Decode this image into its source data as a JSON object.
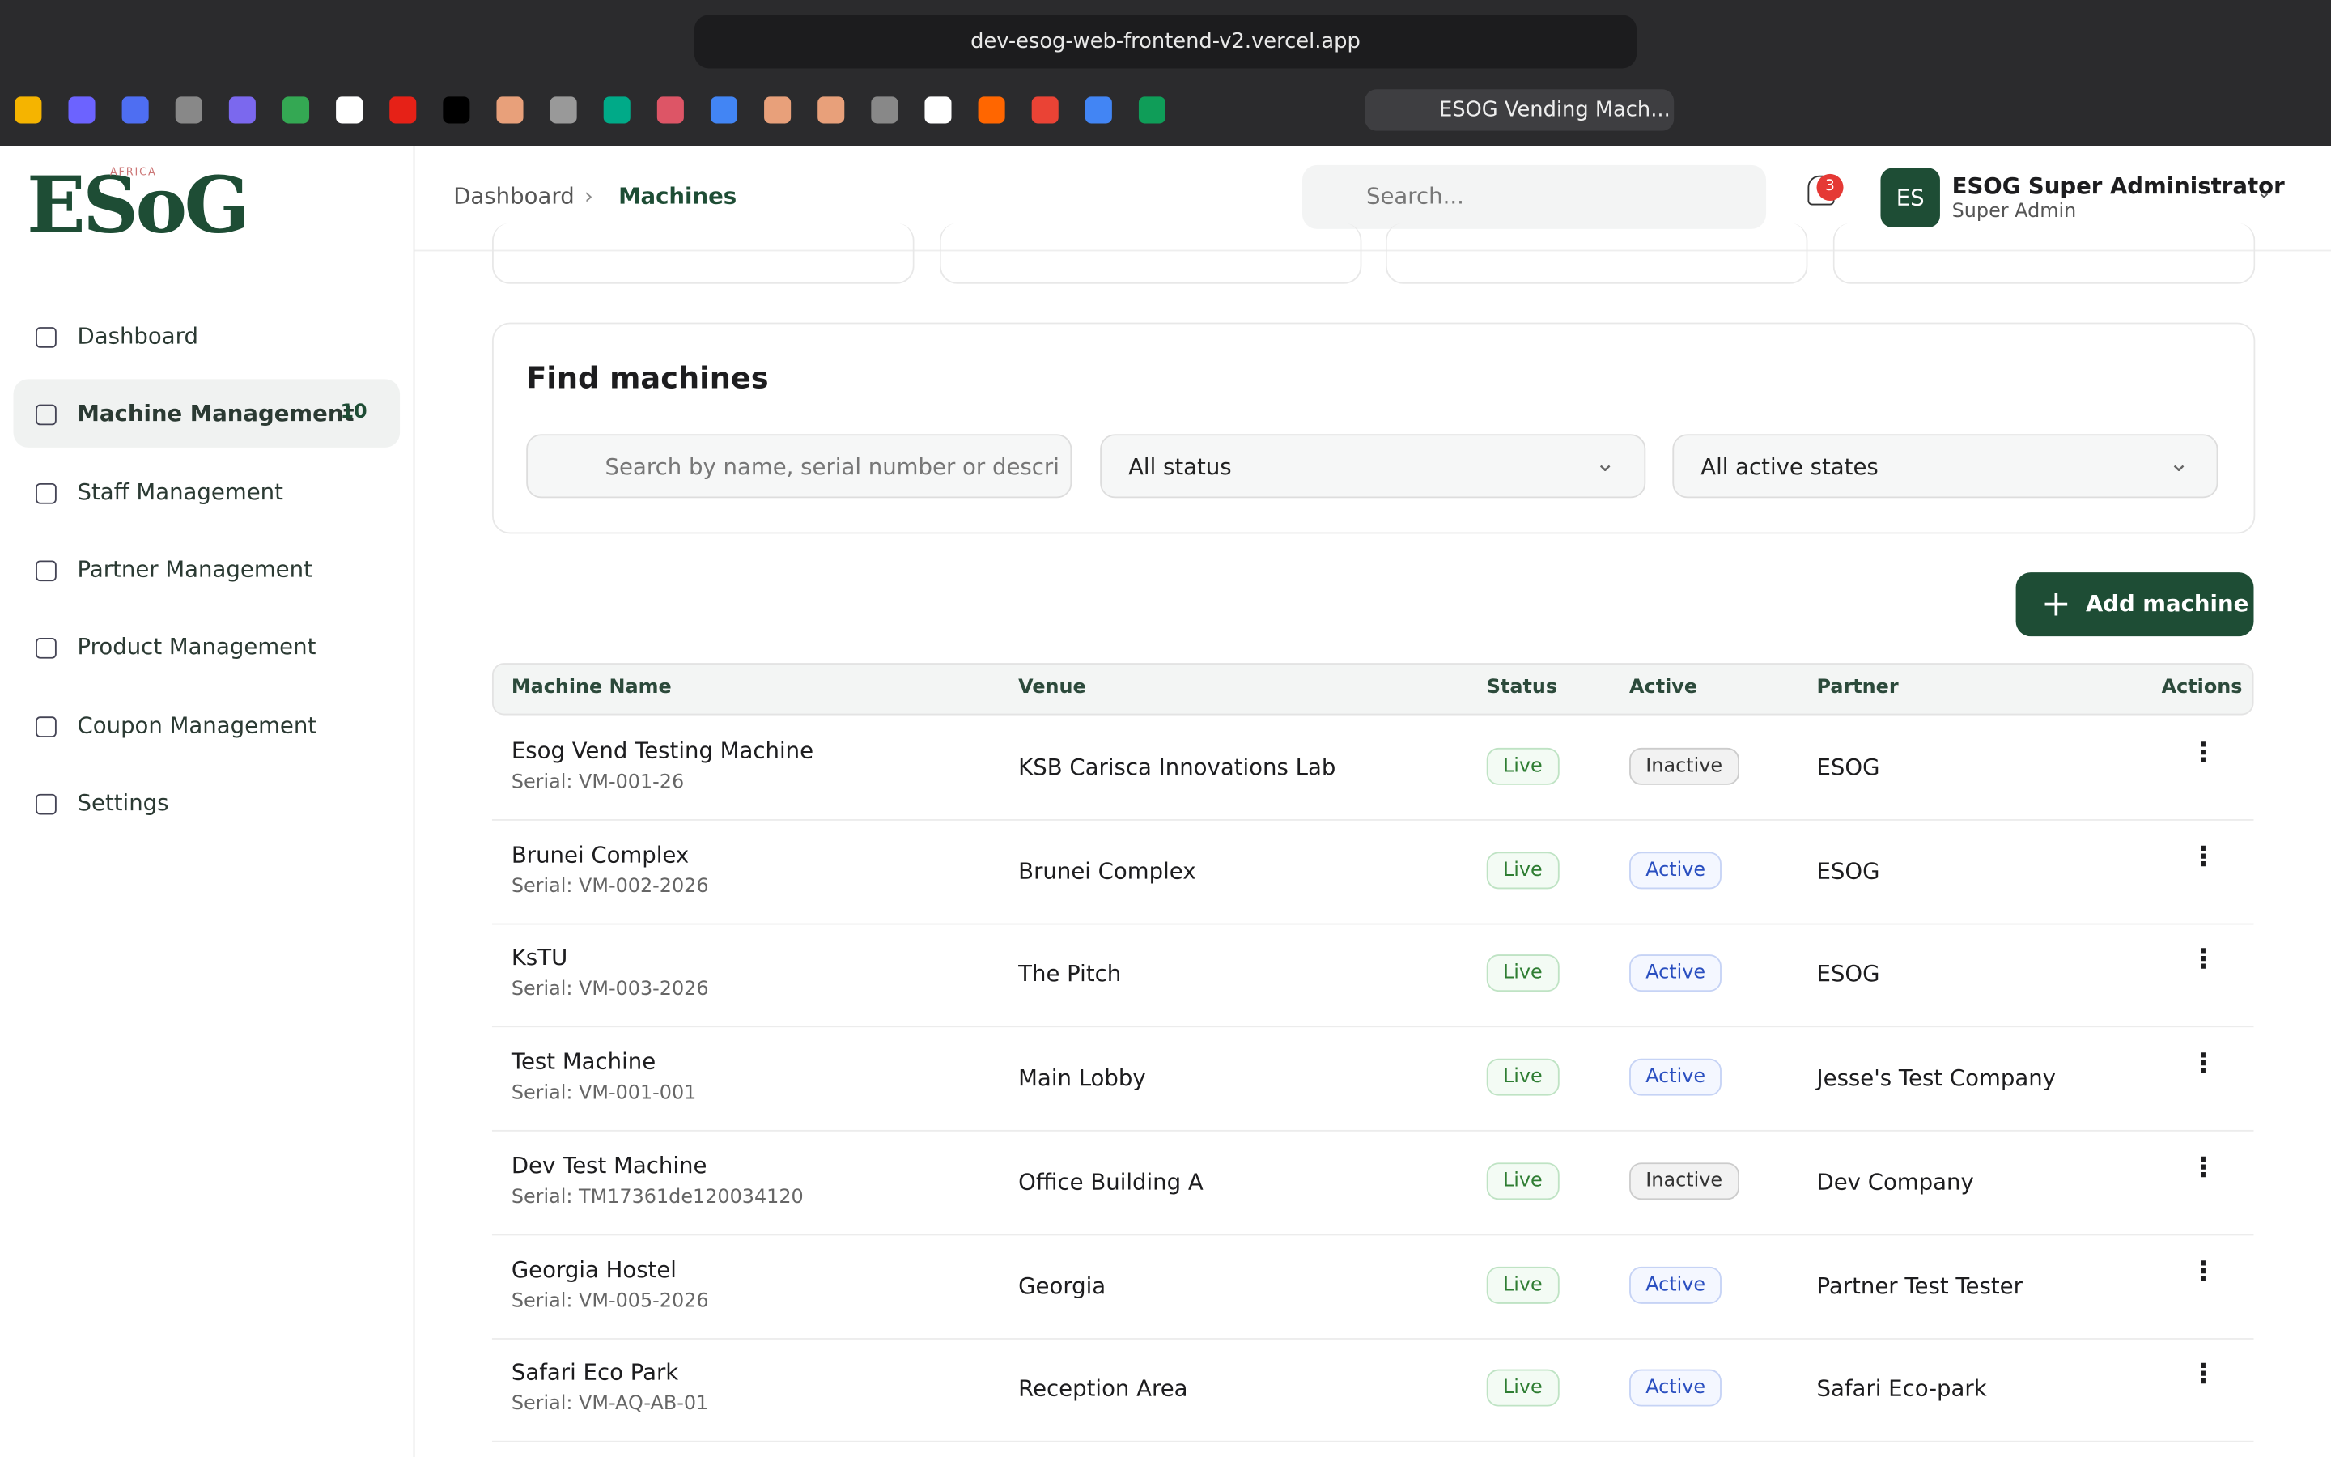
{
  "browser": {
    "url": "dev-esog-web-frontend-v2.vercel.app",
    "active_tab": "ESOG Vending Mach..."
  },
  "sidebar": {
    "logo": "ESoG",
    "logo_sub": "AFRICA",
    "nav": [
      {
        "label": "Dashboard"
      },
      {
        "label": "Machine Management",
        "badge": 10
      },
      {
        "label": "Staff Management"
      },
      {
        "label": "Partner Management"
      },
      {
        "label": "Product Management"
      },
      {
        "label": "Coupon Management"
      },
      {
        "label": "Settings"
      }
    ]
  },
  "header": {
    "breadcrumb": [
      "Dashboard",
      "Machines"
    ],
    "search_placeholder": "Search...",
    "notifications": 3,
    "avatar": "ES",
    "user_name": "ESOG Super Administrator",
    "user_role": "Super Admin"
  },
  "filters": {
    "title": "Find machines",
    "search_placeholder": "Search by name, serial number or descri",
    "status": "All status",
    "active": "All active states"
  },
  "add_button": "Add machine",
  "table": {
    "columns": [
      "Machine Name",
      "Venue",
      "Status",
      "Active",
      "Partner",
      "Actions"
    ],
    "rows": [
      {
        "name": "Esog Vend Testing Machine",
        "serial": "Serial: VM-001-26",
        "venue": "KSB Carisca Innovations Lab",
        "status": "Live",
        "active": "Inactive",
        "partner": "ESOG"
      },
      {
        "name": "Brunei Complex",
        "serial": "Serial: VM-002-2026",
        "venue": "Brunei Complex",
        "status": "Live",
        "active": "Active",
        "partner": "ESOG"
      },
      {
        "name": "KsTU",
        "serial": "Serial: VM-003-2026",
        "venue": "The Pitch",
        "status": "Live",
        "active": "Active",
        "partner": "ESOG"
      },
      {
        "name": "Test Machine",
        "serial": "Serial: VM-001-001",
        "venue": "Main Lobby",
        "status": "Live",
        "active": "Active",
        "partner": "Jesse's Test Company"
      },
      {
        "name": "Dev Test Machine",
        "serial": "Serial: TM17361de120034120",
        "venue": "Office Building A",
        "status": "Live",
        "active": "Inactive",
        "partner": "Dev Company"
      },
      {
        "name": "Georgia Hostel",
        "serial": "Serial: VM-005-2026",
        "venue": "Georgia",
        "status": "Live",
        "active": "Active",
        "partner": "Partner Test Tester"
      },
      {
        "name": "Safari Eco Park",
        "serial": "Serial: VM-AQ-AB-01",
        "venue": "Reception Area",
        "status": "Live",
        "active": "Active",
        "partner": "Safari Eco-park"
      }
    ]
  }
}
